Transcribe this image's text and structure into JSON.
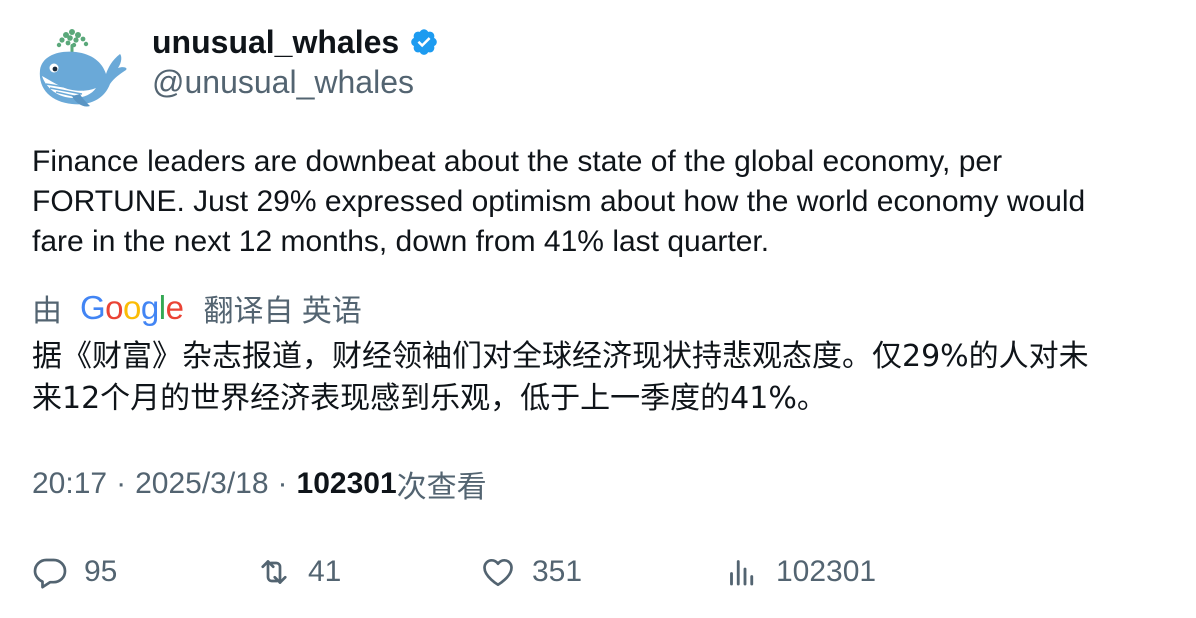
{
  "account": {
    "display_name": "unusual_whales",
    "handle": "@unusual_whales",
    "avatar_icon": "whale-logo-icon",
    "verified_icon": "verified-badge-icon",
    "verified_color": "#1d9bf0"
  },
  "tweet": {
    "text": "Finance leaders are downbeat about the state of the global economy, per\nFORTUNE. Just 29% expressed optimism about how the world economy would\nfare in the next 12 months, down from 41% last quarter."
  },
  "translation": {
    "by_label": "由",
    "provider_letters": [
      {
        "ch": "G",
        "color": "#4285f4"
      },
      {
        "ch": "o",
        "color": "#ea4335"
      },
      {
        "ch": "o",
        "color": "#fbbc05"
      },
      {
        "ch": "g",
        "color": "#4285f4"
      },
      {
        "ch": "l",
        "color": "#34a853"
      },
      {
        "ch": "e",
        "color": "#ea4335"
      }
    ],
    "translated_from_label": "翻译自 英语",
    "text": "据《财富》杂志报道，财经领袖们对全球经济现状持悲观态度。仅29%的人对未\n来12个月的世界经济表现感到乐观，低于上一季度的41%。"
  },
  "meta": {
    "time": "20:17",
    "separator": "·",
    "date": "2025/3/18",
    "views_count": "102301",
    "views_label": "次查看"
  },
  "actions": {
    "reply": {
      "icon": "reply-icon",
      "count": "95"
    },
    "retweet": {
      "icon": "retweet-icon",
      "count": "41"
    },
    "like": {
      "icon": "heart-icon",
      "count": "351"
    },
    "views": {
      "icon": "analytics-icon",
      "count": "102301"
    }
  },
  "colors": {
    "text_primary": "#0f1419",
    "text_secondary": "#536471",
    "whale_blue": "#6aa9d8",
    "spout_green": "#5aa87a"
  }
}
